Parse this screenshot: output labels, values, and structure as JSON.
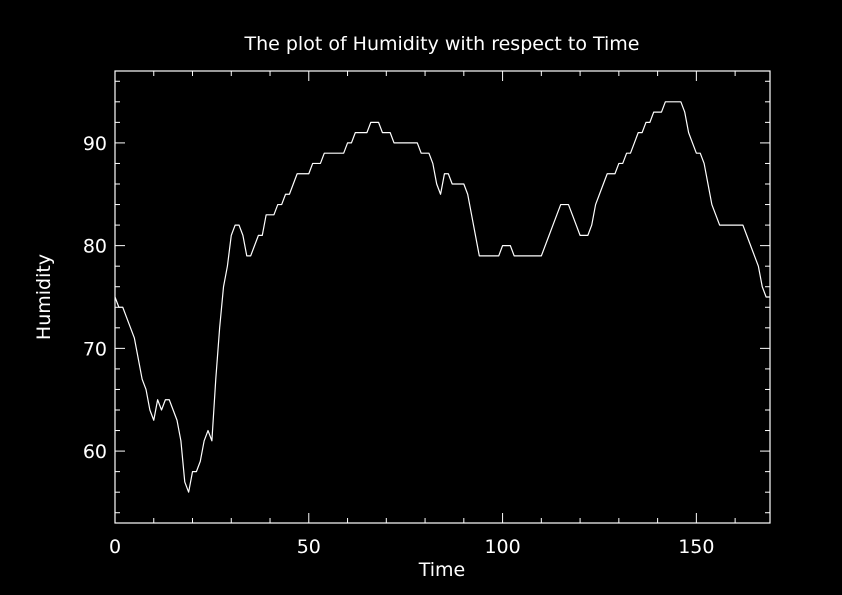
{
  "chart_data": {
    "type": "line",
    "title": "The plot of Humidity with respect to Time",
    "xlabel": "Time",
    "ylabel": "Humidity",
    "xlim": [
      0,
      169
    ],
    "ylim": [
      53,
      97
    ],
    "xticks": [
      0,
      50,
      100,
      150
    ],
    "yticks": [
      60,
      70,
      80,
      90
    ],
    "xticks_minor_step": 10,
    "yticks_minor_step": 2,
    "grid": false,
    "background_color": "#000000",
    "foreground_color": "#ffffff",
    "series": [
      {
        "color": "#ffffff",
        "points": [
          [
            0,
            75
          ],
          [
            1,
            74
          ],
          [
            2,
            74
          ],
          [
            3,
            73
          ],
          [
            4,
            72
          ],
          [
            5,
            71
          ],
          [
            6,
            69
          ],
          [
            7,
            67
          ],
          [
            8,
            66
          ],
          [
            9,
            64
          ],
          [
            10,
            63
          ],
          [
            11,
            65
          ],
          [
            12,
            64
          ],
          [
            13,
            65
          ],
          [
            14,
            65
          ],
          [
            15,
            64
          ],
          [
            16,
            63
          ],
          [
            17,
            61
          ],
          [
            18,
            57
          ],
          [
            19,
            56
          ],
          [
            20,
            58
          ],
          [
            21,
            58
          ],
          [
            22,
            59
          ],
          [
            23,
            61
          ],
          [
            24,
            62
          ],
          [
            25,
            61
          ],
          [
            26,
            67
          ],
          [
            27,
            72
          ],
          [
            28,
            76
          ],
          [
            29,
            78
          ],
          [
            30,
            81
          ],
          [
            31,
            82
          ],
          [
            32,
            82
          ],
          [
            33,
            81
          ],
          [
            34,
            79
          ],
          [
            35,
            79
          ],
          [
            36,
            80
          ],
          [
            37,
            81
          ],
          [
            38,
            81
          ],
          [
            39,
            83
          ],
          [
            40,
            83
          ],
          [
            41,
            83
          ],
          [
            42,
            84
          ],
          [
            43,
            84
          ],
          [
            44,
            85
          ],
          [
            45,
            85
          ],
          [
            46,
            86
          ],
          [
            47,
            87
          ],
          [
            48,
            87
          ],
          [
            49,
            87
          ],
          [
            50,
            87
          ],
          [
            51,
            88
          ],
          [
            52,
            88
          ],
          [
            53,
            88
          ],
          [
            54,
            89
          ],
          [
            55,
            89
          ],
          [
            56,
            89
          ],
          [
            57,
            89
          ],
          [
            58,
            89
          ],
          [
            59,
            89
          ],
          [
            60,
            90
          ],
          [
            61,
            90
          ],
          [
            62,
            91
          ],
          [
            63,
            91
          ],
          [
            64,
            91
          ],
          [
            65,
            91
          ],
          [
            66,
            92
          ],
          [
            67,
            92
          ],
          [
            68,
            92
          ],
          [
            69,
            91
          ],
          [
            70,
            91
          ],
          [
            71,
            91
          ],
          [
            72,
            90
          ],
          [
            73,
            90
          ],
          [
            74,
            90
          ],
          [
            75,
            90
          ],
          [
            76,
            90
          ],
          [
            77,
            90
          ],
          [
            78,
            90
          ],
          [
            79,
            89
          ],
          [
            80,
            89
          ],
          [
            81,
            89
          ],
          [
            82,
            88
          ],
          [
            83,
            86
          ],
          [
            84,
            85
          ],
          [
            85,
            87
          ],
          [
            86,
            87
          ],
          [
            87,
            86
          ],
          [
            88,
            86
          ],
          [
            89,
            86
          ],
          [
            90,
            86
          ],
          [
            91,
            85
          ],
          [
            92,
            83
          ],
          [
            93,
            81
          ],
          [
            94,
            79
          ],
          [
            95,
            79
          ],
          [
            96,
            79
          ],
          [
            97,
            79
          ],
          [
            98,
            79
          ],
          [
            99,
            79
          ],
          [
            100,
            80
          ],
          [
            101,
            80
          ],
          [
            102,
            80
          ],
          [
            103,
            79
          ],
          [
            104,
            79
          ],
          [
            105,
            79
          ],
          [
            106,
            79
          ],
          [
            107,
            79
          ],
          [
            108,
            79
          ],
          [
            109,
            79
          ],
          [
            110,
            79
          ],
          [
            111,
            80
          ],
          [
            112,
            81
          ],
          [
            113,
            82
          ],
          [
            114,
            83
          ],
          [
            115,
            84
          ],
          [
            116,
            84
          ],
          [
            117,
            84
          ],
          [
            118,
            83
          ],
          [
            119,
            82
          ],
          [
            120,
            81
          ],
          [
            121,
            81
          ],
          [
            122,
            81
          ],
          [
            123,
            82
          ],
          [
            124,
            84
          ],
          [
            125,
            85
          ],
          [
            126,
            86
          ],
          [
            127,
            87
          ],
          [
            128,
            87
          ],
          [
            129,
            87
          ],
          [
            130,
            88
          ],
          [
            131,
            88
          ],
          [
            132,
            89
          ],
          [
            133,
            89
          ],
          [
            134,
            90
          ],
          [
            135,
            91
          ],
          [
            136,
            91
          ],
          [
            137,
            92
          ],
          [
            138,
            92
          ],
          [
            139,
            93
          ],
          [
            140,
            93
          ],
          [
            141,
            93
          ],
          [
            142,
            94
          ],
          [
            143,
            94
          ],
          [
            144,
            94
          ],
          [
            145,
            94
          ],
          [
            146,
            94
          ],
          [
            147,
            93
          ],
          [
            148,
            91
          ],
          [
            149,
            90
          ],
          [
            150,
            89
          ],
          [
            151,
            89
          ],
          [
            152,
            88
          ],
          [
            153,
            86
          ],
          [
            154,
            84
          ],
          [
            155,
            83
          ],
          [
            156,
            82
          ],
          [
            157,
            82
          ],
          [
            158,
            82
          ],
          [
            159,
            82
          ],
          [
            160,
            82
          ],
          [
            161,
            82
          ],
          [
            162,
            82
          ],
          [
            163,
            81
          ],
          [
            164,
            80
          ],
          [
            165,
            79
          ],
          [
            166,
            78
          ],
          [
            167,
            76
          ],
          [
            168,
            75
          ],
          [
            169,
            75
          ],
          [
            170,
            76
          ],
          [
            171,
            76
          ]
        ]
      }
    ]
  }
}
